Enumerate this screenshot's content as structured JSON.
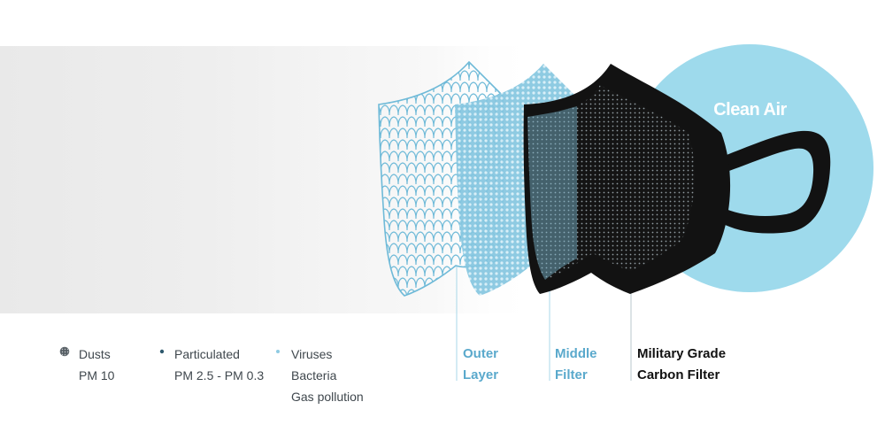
{
  "legend": {
    "items": [
      {
        "lines": [
          "Dusts",
          "PM 10"
        ],
        "dot_style": "textured"
      },
      {
        "lines": [
          "Particulated",
          "PM 2.5 - PM 0.3"
        ],
        "dot_style": "small"
      },
      {
        "lines": [
          "Viruses",
          "Bacteria",
          "Gas pollution"
        ],
        "dot_style": "tiny"
      }
    ]
  },
  "layers": [
    {
      "lines": [
        "Outer",
        "Layer"
      ],
      "color": "#5aa9cc"
    },
    {
      "lines": [
        "Middle",
        "Filter"
      ],
      "color": "#5aa9cc"
    },
    {
      "lines": [
        "Military Grade",
        "Carbon Filter"
      ],
      "color": "#111111"
    }
  ],
  "clean_air": {
    "label": "Clean Air",
    "color": "#9edaec"
  },
  "colors": {
    "polluted_air": "#ececec",
    "outer_mesh": "#6fbad8",
    "middle_fill": "#8ccbe3",
    "carbon": "#121212",
    "leader_line": "#a8d7e8"
  }
}
